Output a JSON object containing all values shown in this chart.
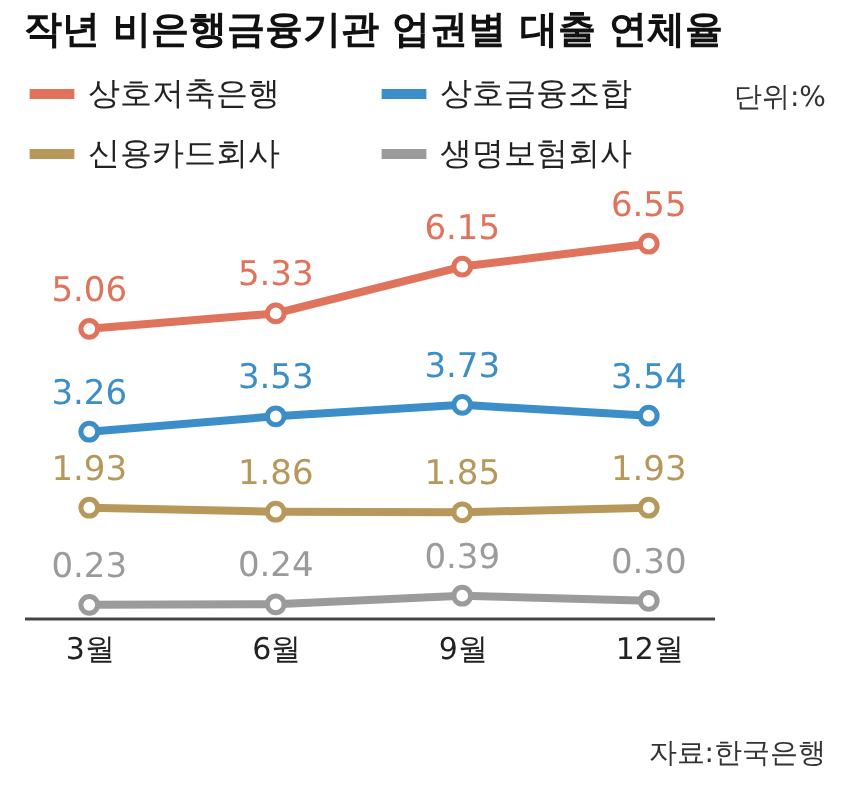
{
  "chart_data": {
    "type": "line",
    "title": "작년 비은행금융기관 업권별 대출 연체율",
    "categories": [
      "3월",
      "6월",
      "9월",
      "12월"
    ],
    "series": [
      {
        "name": "상호저축은행",
        "color": "#e0735c",
        "values": [
          5.06,
          5.33,
          6.15,
          6.55
        ],
        "value_labels": [
          "5.06",
          "5.33",
          "6.15",
          "6.55"
        ]
      },
      {
        "name": "상호금융조합",
        "color": "#3b8ec8",
        "values": [
          3.26,
          3.53,
          3.73,
          3.54
        ],
        "value_labels": [
          "3.26",
          "3.53",
          "3.73",
          "3.54"
        ]
      },
      {
        "name": "신용카드회사",
        "color": "#b7975a",
        "values": [
          1.93,
          1.86,
          1.85,
          1.93
        ],
        "value_labels": [
          "1.93",
          "1.86",
          "1.85",
          "1.93"
        ]
      },
      {
        "name": "생명보험회사",
        "color": "#9b9b9b",
        "values": [
          0.23,
          0.24,
          0.39,
          0.3
        ],
        "value_labels": [
          "0.23",
          "0.24",
          "0.39",
          "0.30"
        ]
      }
    ],
    "marker": "circle",
    "legend": "top",
    "grid": false,
    "tick_labels": "x",
    "annotations": [
      "단위:%",
      "자료:한국은행"
    ]
  }
}
